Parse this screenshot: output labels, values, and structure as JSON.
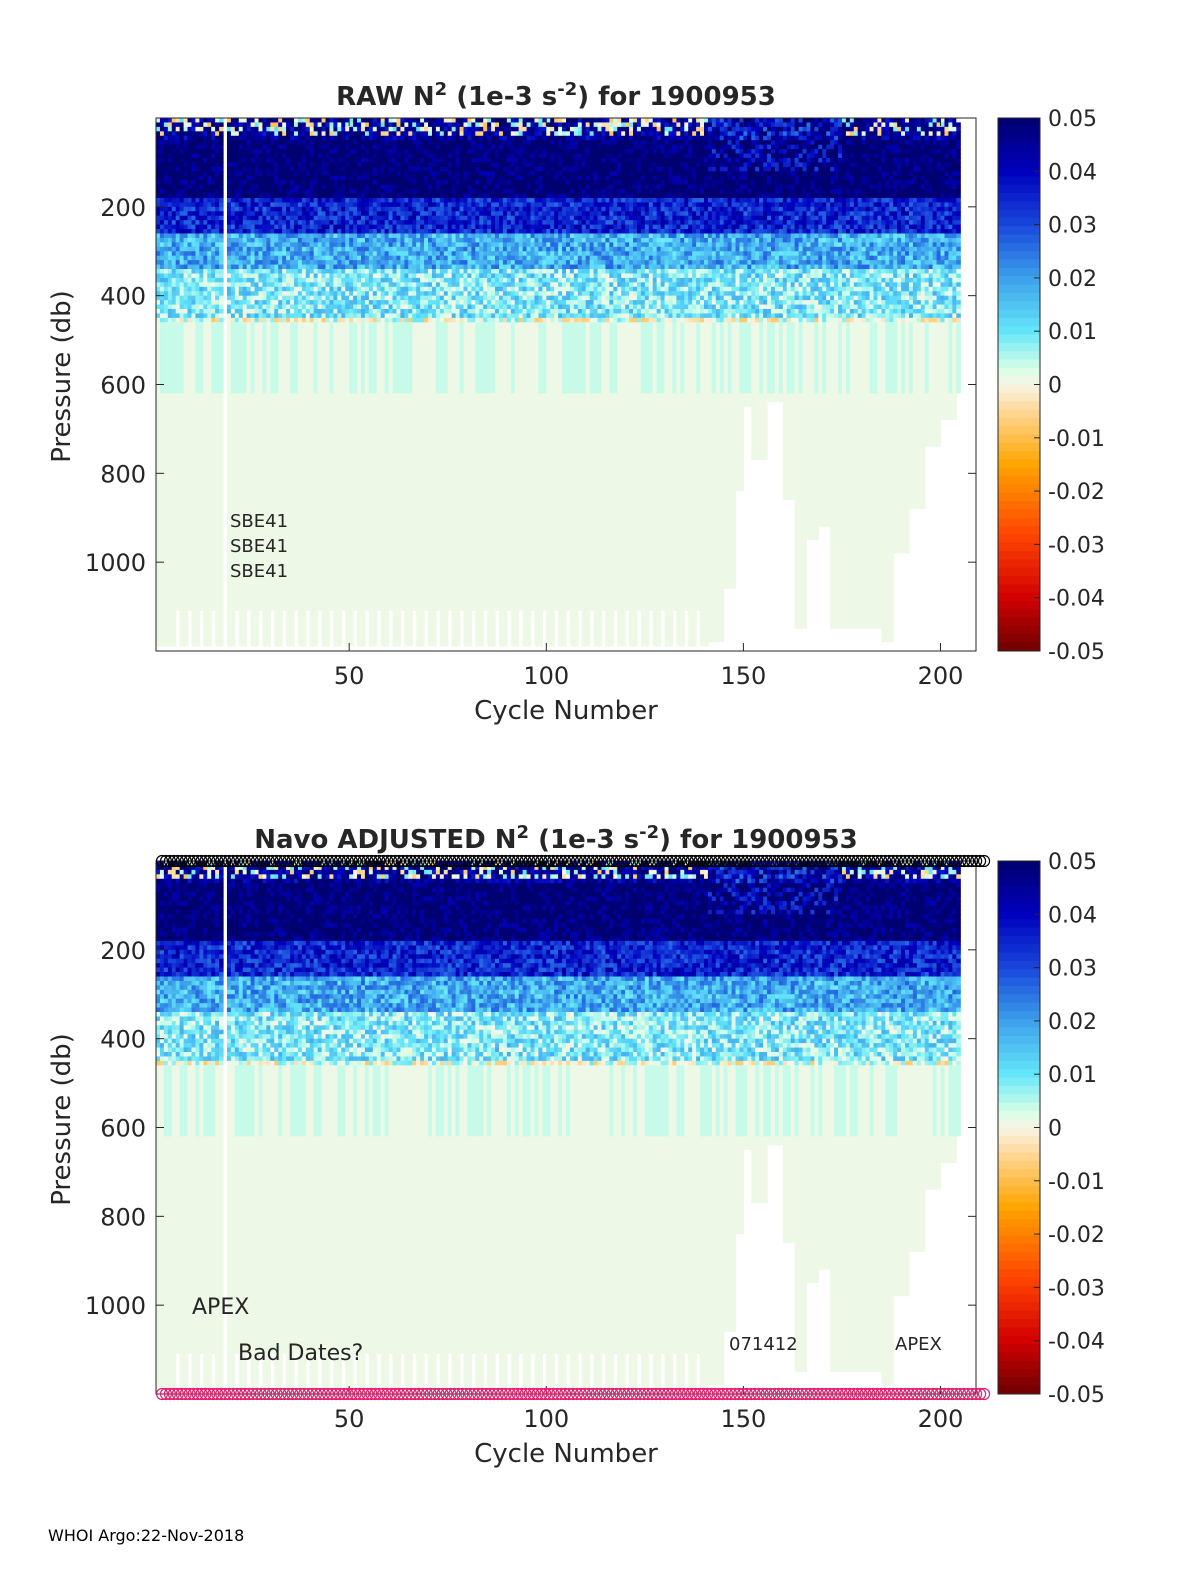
{
  "footer": "WHOI Argo:22-Nov-2018",
  "chart_data": [
    {
      "type": "heatmap",
      "title_main": "RAW N",
      "title_sup1": "2",
      "title_mid": " (1e-3 s",
      "title_sup2": "-2",
      "title_end": ") for 1900953",
      "xlabel": "Cycle Number",
      "ylabel": "Pressure (db)",
      "xlim": [
        1,
        209
      ],
      "ylim": [
        0,
        1200
      ],
      "y_reversed": true,
      "xticks": [
        50,
        100,
        150,
        200
      ],
      "yticks": [
        200,
        400,
        600,
        800,
        1000
      ],
      "colorbar": {
        "colormap": "jet-like diverging",
        "clim": [
          -0.05,
          0.05
        ],
        "ticks": [
          "0.05",
          "0.04",
          "0.03",
          "0.02",
          "0.01",
          "0",
          "-0.01",
          "-0.02",
          "-0.03",
          "-0.04",
          "-0.05"
        ]
      },
      "annotations": [
        "SBE41",
        "SBE41",
        "SBE41"
      ],
      "field_profile": [
        {
          "p_max": 50,
          "value": 0.045
        },
        {
          "p_max": 180,
          "value": 0.05
        },
        {
          "p_max": 260,
          "value": 0.035
        },
        {
          "p_max": 340,
          "value": 0.018
        },
        {
          "p_max": 450,
          "value": 0.009
        },
        {
          "p_max": 1200,
          "value": 0.001
        }
      ],
      "missing_cycles": [
        18
      ],
      "shallow_end_cycles": [
        [
          141,
          1180
        ],
        [
          145,
          1060
        ],
        [
          148,
          840
        ],
        [
          150,
          650
        ],
        [
          152,
          770
        ],
        [
          156,
          640
        ],
        [
          160,
          860
        ],
        [
          163,
          1150
        ],
        [
          166,
          950
        ],
        [
          169,
          920
        ],
        [
          172,
          1150
        ],
        [
          185,
          1180
        ],
        [
          188,
          980
        ],
        [
          192,
          880
        ],
        [
          196,
          740
        ],
        [
          200,
          680
        ],
        [
          204,
          620
        ]
      ]
    },
    {
      "type": "heatmap",
      "title_main": "Navo  ADJUSTED N",
      "title_sup1": "2",
      "title_mid": " (1e-3 s",
      "title_sup2": "-2",
      "title_end": ") for 1900953",
      "xlabel": "Cycle Number",
      "ylabel": "Pressure (db)",
      "xlim": [
        1,
        209
      ],
      "ylim": [
        0,
        1200
      ],
      "y_reversed": true,
      "xticks": [
        50,
        100,
        150,
        200
      ],
      "yticks": [
        200,
        400,
        600,
        800,
        1000
      ],
      "colorbar": {
        "colormap": "jet-like diverging",
        "clim": [
          -0.05,
          0.05
        ],
        "ticks": [
          "0.05",
          "0.04",
          "0.03",
          "0.02",
          "0.01",
          "0",
          "-0.01",
          "-0.02",
          "-0.03",
          "-0.04",
          "-0.05"
        ]
      },
      "annotations": [
        "APEX",
        "Bad Dates?",
        "071412",
        "APEX"
      ],
      "marker_rows": {
        "top": {
          "color": "#000000",
          "count": 209
        },
        "bottom": {
          "color": "#e0206e",
          "count": 209
        }
      },
      "field_profile": [
        {
          "p_max": 50,
          "value": 0.045
        },
        {
          "p_max": 180,
          "value": 0.05
        },
        {
          "p_max": 260,
          "value": 0.035
        },
        {
          "p_max": 340,
          "value": 0.018
        },
        {
          "p_max": 450,
          "value": 0.009
        },
        {
          "p_max": 1200,
          "value": 0.001
        }
      ],
      "missing_cycles": [
        18
      ],
      "shallow_end_cycles": [
        [
          141,
          1180
        ],
        [
          145,
          1060
        ],
        [
          148,
          840
        ],
        [
          150,
          650
        ],
        [
          152,
          770
        ],
        [
          156,
          640
        ],
        [
          160,
          860
        ],
        [
          163,
          1150
        ],
        [
          166,
          950
        ],
        [
          169,
          920
        ],
        [
          172,
          1150
        ],
        [
          185,
          1180
        ],
        [
          188,
          980
        ],
        [
          192,
          880
        ],
        [
          196,
          740
        ],
        [
          200,
          680
        ],
        [
          204,
          620
        ]
      ]
    }
  ]
}
